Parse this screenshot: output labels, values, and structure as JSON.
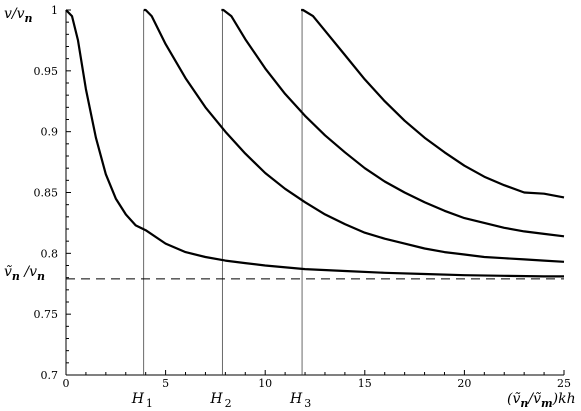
{
  "chart_data": {
    "type": "line",
    "xlim": [
      0,
      25
    ],
    "ylim": [
      0.7,
      1.0
    ],
    "x_ticks": [
      0,
      5,
      10,
      15,
      20,
      25
    ],
    "y_ticks": [
      0.7,
      0.75,
      0.8,
      0.85,
      0.9,
      0.95,
      1
    ],
    "x_tick_labels": [
      "0",
      "5",
      "10",
      "15",
      "20",
      "25"
    ],
    "y_tick_labels": [
      "0.7",
      "0.75",
      "0.8",
      "0.85",
      "0.9",
      "0.95",
      "1"
    ],
    "ylabel": "v/v_n",
    "xlabel": "(ṽ_n/ṽ_m)kh",
    "grid": false,
    "series": [
      {
        "x": [
          0,
          0.3,
          0.6,
          1.0,
          1.5,
          2.0,
          2.5,
          3.0,
          3.5,
          4.0,
          5,
          6,
          7,
          8,
          9,
          10,
          12,
          14,
          16,
          18,
          20,
          22,
          24,
          25
        ],
        "values": [
          1.0,
          0.995,
          0.975,
          0.935,
          0.895,
          0.865,
          0.845,
          0.832,
          0.823,
          0.819,
          0.808,
          0.801,
          0.797,
          0.794,
          0.792,
          0.79,
          0.787,
          0.7855,
          0.784,
          0.783,
          0.782,
          0.7815,
          0.781,
          0.781
        ]
      },
      {
        "x": [
          3.9,
          4.0,
          4.3,
          5,
          6,
          7,
          8,
          9,
          10,
          11,
          12,
          13,
          14,
          15,
          16,
          17,
          18,
          19,
          20,
          21,
          22,
          23,
          24,
          25
        ],
        "values": [
          1.0,
          1.0,
          0.995,
          0.972,
          0.944,
          0.92,
          0.9,
          0.882,
          0.866,
          0.853,
          0.842,
          0.832,
          0.824,
          0.817,
          0.812,
          0.808,
          0.804,
          0.801,
          0.799,
          0.797,
          0.796,
          0.795,
          0.794,
          0.793
        ]
      },
      {
        "x": [
          7.8,
          7.9,
          8.3,
          9,
          10,
          11,
          12,
          13,
          14,
          15,
          16,
          17,
          18,
          19,
          20,
          21,
          22,
          23,
          24,
          25
        ],
        "values": [
          1.0,
          1.0,
          0.995,
          0.976,
          0.952,
          0.931,
          0.913,
          0.897,
          0.883,
          0.87,
          0.859,
          0.85,
          0.842,
          0.835,
          0.829,
          0.825,
          0.821,
          0.818,
          0.816,
          0.814
        ]
      },
      {
        "x": [
          11.8,
          11.9,
          12.4,
          13,
          14,
          15,
          16,
          17,
          18,
          19,
          20,
          21,
          22,
          23,
          24,
          25
        ],
        "values": [
          1.0,
          1.0,
          0.995,
          0.983,
          0.963,
          0.943,
          0.925,
          0.909,
          0.895,
          0.883,
          0.872,
          0.863,
          0.856,
          0.85,
          0.849,
          0.846
        ]
      }
    ],
    "asymptote": {
      "y": 0.779,
      "label": "ṽ_n/v_n"
    },
    "vertical_markers": [
      {
        "x": 3.9,
        "label": "H",
        "sub": "1"
      },
      {
        "x": 7.85,
        "label": "H",
        "sub": "2"
      },
      {
        "x": 11.85,
        "label": "H",
        "sub": "3"
      }
    ]
  }
}
